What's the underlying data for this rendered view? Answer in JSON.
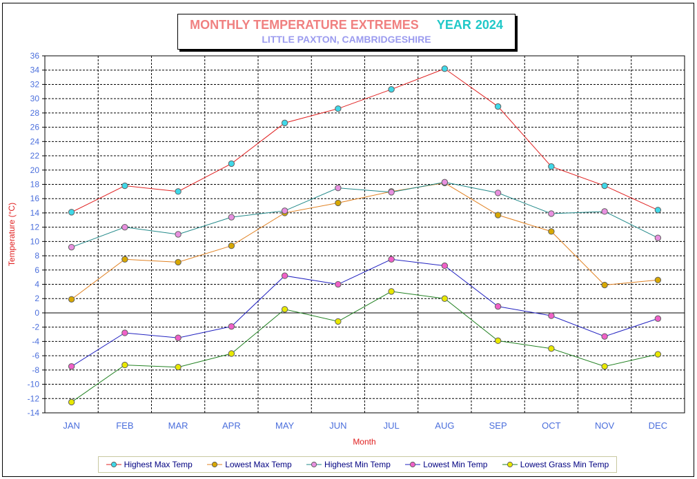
{
  "title": {
    "main": "MONTHLY TEMPERATURE EXTREMES",
    "year_label": "YEAR",
    "year": "2024",
    "subtitle": "LITTLE PAXTON, CAMBRIDGESHIRE"
  },
  "chart_data": {
    "type": "line",
    "title": "MONTHLY TEMPERATURE EXTREMES YEAR 2024",
    "subtitle": "LITTLE PAXTON, CAMBRIDGESHIRE",
    "xlabel": "Month",
    "ylabel": "Temperature (°C)",
    "ylim": [
      -14,
      36
    ],
    "ytick_step": 2,
    "grid": true,
    "legend_position": "bottom",
    "categories": [
      "JAN",
      "FEB",
      "MAR",
      "APR",
      "MAY",
      "JUN",
      "JUL",
      "AUG",
      "SEP",
      "OCT",
      "NOV",
      "DEC"
    ],
    "series": [
      {
        "name": "Highest Max Temp",
        "line_color": "#e02020",
        "marker_color": "#40d8e8",
        "values": [
          14.1,
          17.8,
          17.0,
          20.9,
          26.6,
          28.6,
          31.3,
          34.2,
          28.9,
          20.5,
          17.8,
          14.4
        ]
      },
      {
        "name": "Lowest Max Temp",
        "line_color": "#e08020",
        "marker_color": "#d8a800",
        "values": [
          1.9,
          7.5,
          7.1,
          9.4,
          14.0,
          15.4,
          17.0,
          18.2,
          13.7,
          11.4,
          3.9,
          4.6
        ]
      },
      {
        "name": "Highest Min Temp",
        "line_color": "#208888",
        "marker_color": "#e890e0",
        "values": [
          9.2,
          12.0,
          11.0,
          13.4,
          14.3,
          17.5,
          16.9,
          18.3,
          16.8,
          13.9,
          14.2,
          10.5
        ]
      },
      {
        "name": "Lowest Min Temp",
        "line_color": "#2020c0",
        "marker_color": "#f060c8",
        "values": [
          -7.5,
          -2.8,
          -3.5,
          -1.9,
          5.2,
          4.0,
          7.5,
          6.6,
          0.9,
          -0.4,
          -3.3,
          -0.8
        ]
      },
      {
        "name": "Lowest Grass Min Temp",
        "line_color": "#208020",
        "marker_color": "#e8e800",
        "values": [
          -12.5,
          -7.3,
          -7.6,
          -5.7,
          0.5,
          -1.2,
          3.0,
          2.0,
          -3.9,
          -5.0,
          -7.5,
          -5.8
        ]
      }
    ]
  },
  "colors": {
    "tick_label": "#4a6edc",
    "axis_title": "#e02020"
  }
}
